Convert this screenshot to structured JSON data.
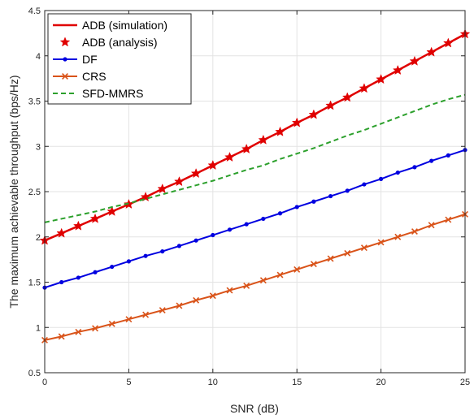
{
  "chart_data": {
    "type": "line",
    "xlabel": "SNR (dB)",
    "ylabel": "The maximum achievable throughput (bps/Hz)",
    "xlim": [
      0,
      25
    ],
    "ylim": [
      0.5,
      4.5
    ],
    "xticks": [
      0,
      5,
      10,
      15,
      20,
      25
    ],
    "xtick_labels": [
      "0",
      "5",
      "10",
      "15",
      "20",
      "25"
    ],
    "yticks": [
      0.5,
      1,
      1.5,
      2,
      2.5,
      3,
      3.5,
      4,
      4.5
    ],
    "ytick_labels": [
      "0.5",
      "1",
      "1.5",
      "2",
      "2.5",
      "3",
      "3.5",
      "4",
      "4.5"
    ],
    "grid": true,
    "legend_position": "top-left",
    "x": [
      0,
      1,
      2,
      3,
      4,
      5,
      6,
      7,
      8,
      9,
      10,
      11,
      12,
      13,
      14,
      15,
      16,
      17,
      18,
      19,
      20,
      21,
      22,
      23,
      24,
      25
    ],
    "series": [
      {
        "name": "ADB (simulation)",
        "color": "#e00000",
        "style": "line",
        "values": [
          1.96,
          2.04,
          2.12,
          2.2,
          2.28,
          2.36,
          2.44,
          2.53,
          2.61,
          2.7,
          2.79,
          2.88,
          2.97,
          3.07,
          3.16,
          3.26,
          3.35,
          3.45,
          3.54,
          3.64,
          3.74,
          3.84,
          3.94,
          4.04,
          4.14,
          4.24
        ]
      },
      {
        "name": "ADB (analysis)",
        "color": "#e00000",
        "style": "star-markers",
        "values": [
          1.96,
          2.04,
          2.12,
          2.2,
          2.28,
          2.36,
          2.44,
          2.53,
          2.61,
          2.7,
          2.79,
          2.88,
          2.97,
          3.07,
          3.16,
          3.26,
          3.35,
          3.45,
          3.54,
          3.64,
          3.74,
          3.84,
          3.94,
          4.04,
          4.14,
          4.24
        ]
      },
      {
        "name": "DF",
        "color": "#0000e0",
        "style": "line-dot-markers",
        "values": [
          1.44,
          1.5,
          1.55,
          1.61,
          1.67,
          1.73,
          1.79,
          1.84,
          1.9,
          1.96,
          2.02,
          2.08,
          2.14,
          2.2,
          2.26,
          2.33,
          2.39,
          2.45,
          2.51,
          2.58,
          2.64,
          2.71,
          2.77,
          2.84,
          2.9,
          2.96
        ]
      },
      {
        "name": "CRS",
        "color": "#d95319",
        "style": "line-x-markers",
        "values": [
          0.86,
          0.9,
          0.95,
          0.99,
          1.04,
          1.09,
          1.14,
          1.19,
          1.24,
          1.3,
          1.35,
          1.41,
          1.46,
          1.52,
          1.58,
          1.64,
          1.7,
          1.76,
          1.82,
          1.88,
          1.94,
          2.0,
          2.06,
          2.13,
          2.19,
          2.25
        ]
      },
      {
        "name": "SFD-MMRS",
        "color": "#2ca02c",
        "style": "dashed-line",
        "values": [
          2.16,
          2.2,
          2.24,
          2.28,
          2.33,
          2.37,
          2.42,
          2.47,
          2.52,
          2.57,
          2.62,
          2.68,
          2.74,
          2.79,
          2.86,
          2.92,
          2.98,
          3.05,
          3.12,
          3.18,
          3.25,
          3.32,
          3.39,
          3.46,
          3.52,
          3.57
        ]
      }
    ]
  }
}
